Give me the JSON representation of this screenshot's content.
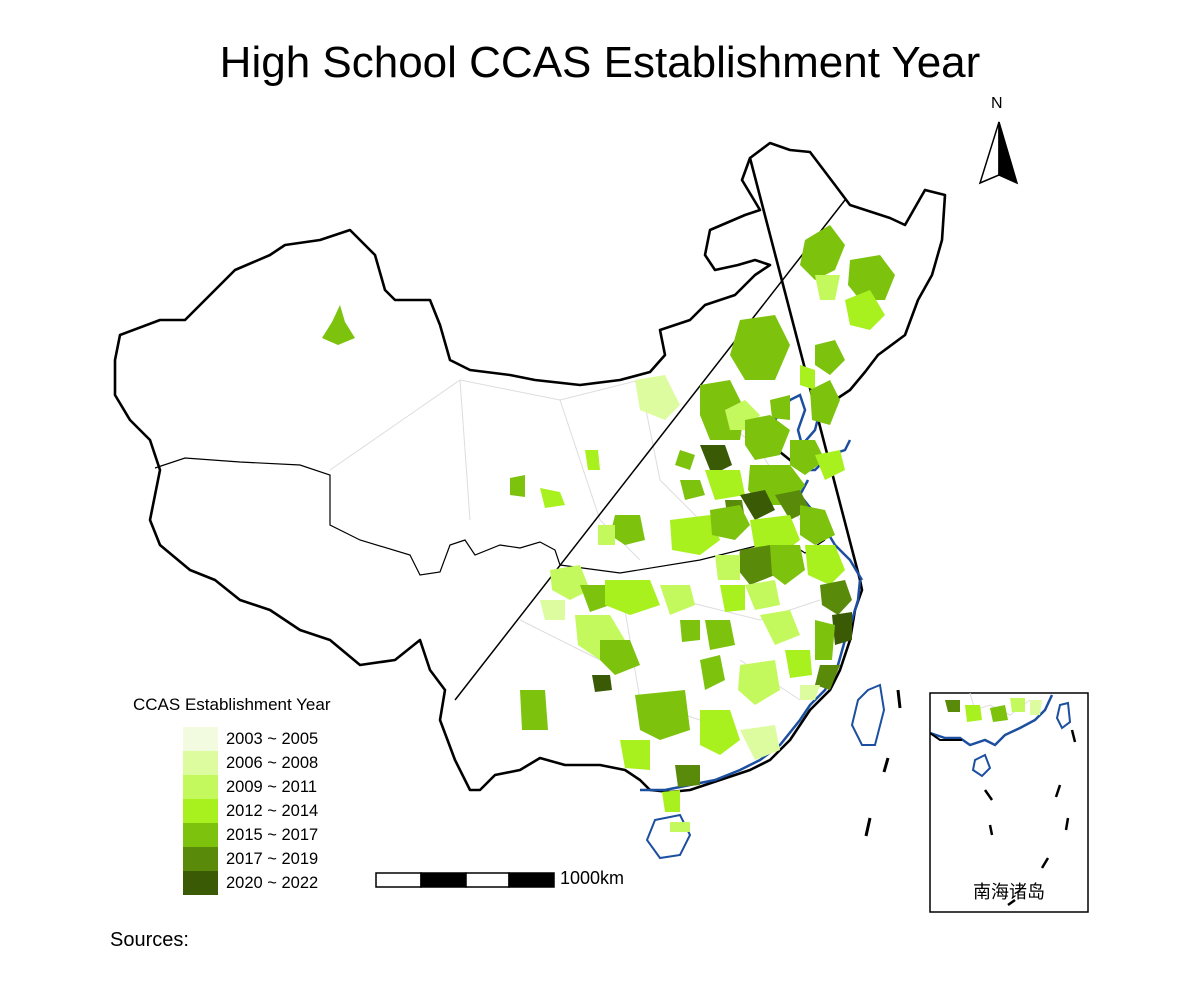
{
  "title": "High School CCAS Establishment Year",
  "north_label": "N",
  "scale_label": "1000km",
  "inset_label": "南海诸岛",
  "sources_label": "Sources:",
  "legend": {
    "title": "CCAS Establishment Year",
    "items": [
      {
        "label": "2003 ~ 2005",
        "color": "#f2fbe0"
      },
      {
        "label": "2006 ~ 2008",
        "color": "#dcfc9f"
      },
      {
        "label": "2009 ~ 2011",
        "color": "#c4f95d"
      },
      {
        "label": "2012 ~ 2014",
        "color": "#a8f11e"
      },
      {
        "label": "2015 ~ 2017",
        "color": "#7dc20d"
      },
      {
        "label": "2017 ~ 2019",
        "color": "#5a8a0a"
      },
      {
        "label": "2020 ~ 2022",
        "color": "#3a5a06"
      }
    ]
  },
  "colors": {
    "border": "#000000",
    "coast": "#1c4fa0",
    "province_lines": "#dddddd"
  }
}
